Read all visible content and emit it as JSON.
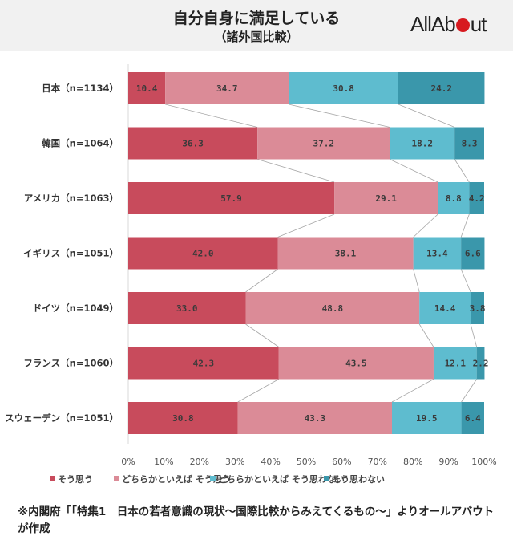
{
  "header": {
    "title": "自分自身に満足している",
    "subtitle": "（諸外国比較）",
    "logo": {
      "left": "AllAb",
      "right": "ut",
      "dot_color": "#d7191f"
    }
  },
  "chart_data": {
    "type": "bar",
    "orientation": "horizontal-stacked-100",
    "title": "自分自身に満足している",
    "subtitle": "（諸外国比較）",
    "categories": [
      "日本（n=1134）",
      "韓国（n=1064）",
      "アメリカ（n=1063）",
      "イギリス（n=1051）",
      "ドイツ（n=1049）",
      "フランス（n=1060）",
      "スウェーデン（n=1051）"
    ],
    "series": [
      {
        "name": "そう思う",
        "color": "#c84b5c",
        "values": [
          10.4,
          36.3,
          57.9,
          42.0,
          33.0,
          42.3,
          30.8
        ]
      },
      {
        "name": "どちらかといえば そう思う",
        "color": "#db8b97",
        "values": [
          34.7,
          37.2,
          29.1,
          38.1,
          48.8,
          43.5,
          43.3
        ]
      },
      {
        "name": "どちらかといえば そう思わない",
        "color": "#5ebccf",
        "values": [
          30.8,
          18.2,
          8.8,
          13.4,
          14.4,
          12.1,
          19.5
        ]
      },
      {
        "name": "そう思わない",
        "color": "#3a97ab",
        "values": [
          24.2,
          8.3,
          4.2,
          6.6,
          3.8,
          2.2,
          6.4
        ]
      }
    ],
    "xlim": [
      0,
      100
    ],
    "xticks": [
      "0%",
      "10%",
      "20%",
      "30%",
      "40%",
      "50%",
      "60%",
      "70%",
      "80%",
      "90%",
      "100%"
    ],
    "xlabel": "",
    "ylabel": "",
    "grid": false,
    "connector_lines": true,
    "legend": "bottom"
  },
  "footnote": "※内閣府「「特集1　日本の若者意識の現状～国際比較からみえてくるもの～」よりオールアバウトが作成"
}
